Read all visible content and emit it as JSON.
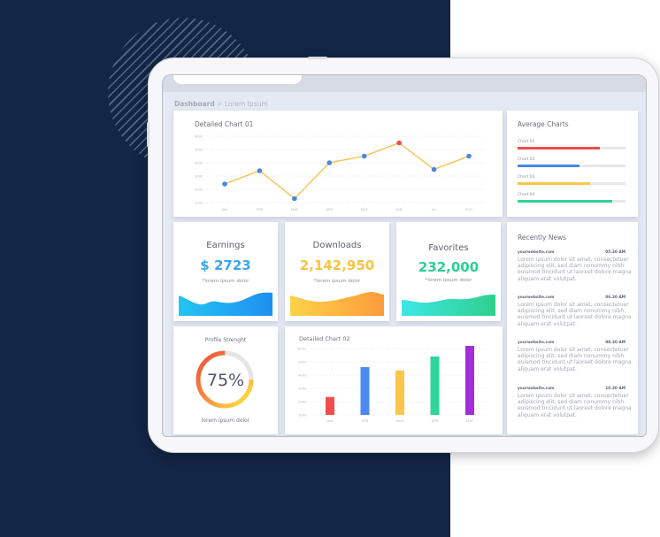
{
  "breadcrumb": {
    "root": "Dashboard",
    "separator": ">",
    "current": "Lorem Ipsum"
  },
  "chart01": {
    "title": "Detailed Chart 01"
  },
  "average_charts": {
    "title": "Average Charts",
    "items": [
      {
        "label": "Chart 01",
        "percent": 76,
        "color": "#ea4d4d"
      },
      {
        "label": "Chart 02",
        "percent": 57,
        "color": "#4a86e8"
      },
      {
        "label": "Chart 03",
        "percent": 67,
        "color": "#f8c549"
      },
      {
        "label": "Chart 04",
        "percent": 88,
        "color": "#2fd496"
      }
    ]
  },
  "stats": {
    "earnings": {
      "label": "Earnings",
      "value": "$ 2723",
      "note": "*lorem ipsum dolor",
      "color": "#3aa6f2"
    },
    "downloads": {
      "label": "Downloads",
      "value": "2,142,950",
      "note": "*lorem ipsum dolor",
      "color": "#f9c443"
    },
    "favorites": {
      "label": "Favorites",
      "value": "232,000",
      "note": "*lorem ipsum dolor",
      "color": "#2ccf94"
    }
  },
  "profile": {
    "title": "Profile Strenght",
    "value": "75%",
    "percent": 75,
    "note": "lorem ipsum dolor"
  },
  "chart02": {
    "title": "Detailed Chart 02"
  },
  "news": {
    "title": "Recently News",
    "items": [
      {
        "source": "yourwebsite.com",
        "time": "05.30 AM",
        "body": "Lorem ipsum dolor sit amet, consectetuer adipiscing elit, sed diam nonummy nibh euismod tincidunt ut laoreet dolore magna aliquam erat volutpat."
      },
      {
        "source": "yourwebsite.com",
        "time": "06.30 AM",
        "body": "Lorem ipsum dolor sit amet, consectetuer adipiscing elit, sed diam nonummy nibh euismod tincidunt ut laoreet dolore magna aliquam erat volutpat."
      },
      {
        "source": "yourwebsite.com",
        "time": "08.30 AM",
        "body": "Lorem ipsum dolor sit amet, consectetuer adipiscing elit, sed diam nonummy nibh euismod tincidunt ut laoreet dolore magna aliquam erat volutpat."
      },
      {
        "source": "yourwebsite.com",
        "time": "10.30 AM",
        "body": "Lorem ipsum dolor sit amet, consectetuer adipiscing elit, sed diam nonummy nibh euismod tincidunt ut laoreet dolore magna aliquam erat volutpat."
      }
    ]
  },
  "chart_data": [
    {
      "type": "line",
      "title": "Detailed Chart 01",
      "categories": [
        "JAN",
        "FEB",
        "MAR",
        "APR",
        "MAY",
        "JUN",
        "JUL",
        "AUG"
      ],
      "values": [
        2400,
        3400,
        1300,
        4000,
        4500,
        5500,
        3500,
        4500
      ],
      "highlight_index": 5,
      "line_color": "#f5c04a",
      "point_color": "#4a86e8",
      "highlight_color": "#ea4d4d",
      "yticks": [
        1000,
        2000,
        3000,
        4000,
        5000,
        6000
      ],
      "ylim": [
        1000,
        6000
      ],
      "grid": true,
      "xlabel": "",
      "ylabel": ""
    },
    {
      "type": "bar",
      "title": "Detailed Chart 02",
      "categories": [
        "JAN",
        "FEB",
        "MAR",
        "APR",
        "MAY"
      ],
      "values": [
        2350,
        4600,
        4350,
        5400,
        6200
      ],
      "colors": [
        "#f04e4e",
        "#4d8af0",
        "#fdc54a",
        "#2ed69a",
        "#a42ddc"
      ],
      "yticks": [
        1000,
        2000,
        3000,
        4000,
        5000,
        6000
      ],
      "ylim": [
        1000,
        6000
      ],
      "grid": true,
      "xlabel": "",
      "ylabel": ""
    },
    {
      "type": "pie",
      "title": "Profile Strenght",
      "values": [
        75,
        25
      ],
      "labels": [
        "filled",
        "remaining"
      ]
    }
  ]
}
